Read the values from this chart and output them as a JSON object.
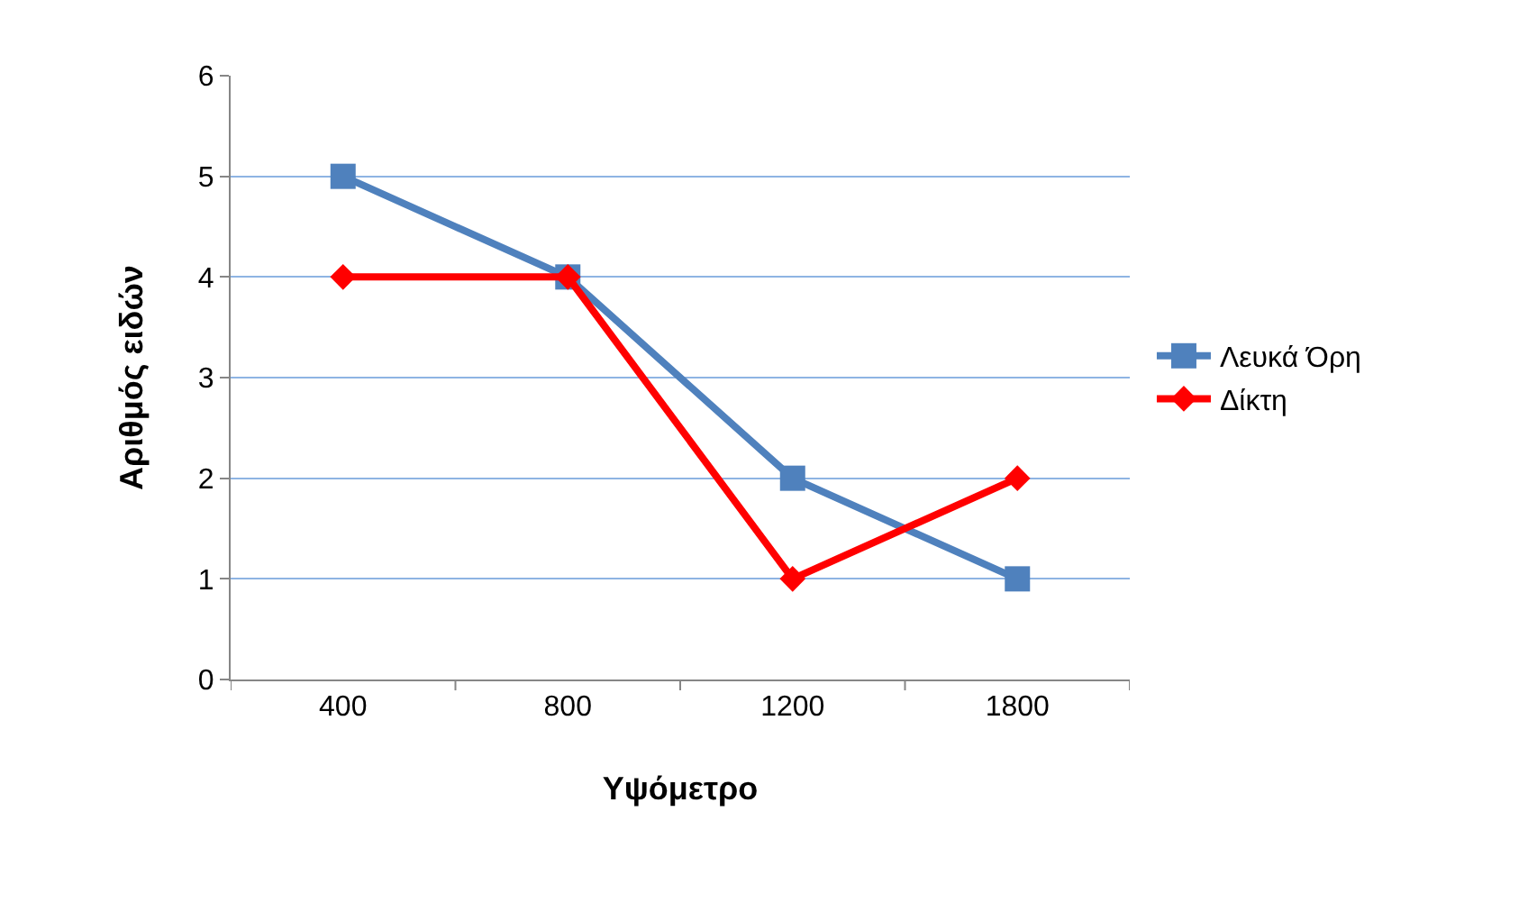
{
  "chart_data": {
    "type": "line",
    "xlabel": "Υψόμετρο",
    "ylabel": "Αριθμός ειδών",
    "categories": [
      "400",
      "800",
      "1200",
      "1800"
    ],
    "series": [
      {
        "name": "Λευκά Όρη",
        "color": "#4f81bd",
        "values": [
          5,
          4,
          2,
          1
        ],
        "marker": "square"
      },
      {
        "name": "Δίκτη",
        "color": "#ff0000",
        "values": [
          4,
          4,
          1,
          2
        ],
        "marker": "diamond"
      }
    ],
    "ylim": [
      0,
      6
    ],
    "yticks": [
      0,
      1,
      2,
      3,
      4,
      5,
      6
    ],
    "grid": "y",
    "legend": "right",
    "line_style": "solid"
  }
}
